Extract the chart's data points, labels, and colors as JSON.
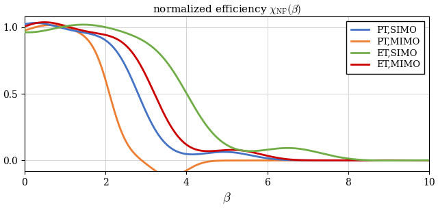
{
  "title": "normalized efficiency $\\chi_{\\mathrm{NF}}(\\beta)$",
  "xlabel": "$\\beta$",
  "xlim": [
    0,
    10
  ],
  "ylim": [
    -0.08,
    1.08
  ],
  "xticks": [
    0,
    2,
    4,
    6,
    8,
    10
  ],
  "yticks": [
    0,
    0.5,
    1
  ],
  "grid": true,
  "legend": [
    "PT,SIMO",
    "PT,MIMO",
    "ET,SIMO",
    "ET,MIMO"
  ],
  "colors": [
    "#4472C4",
    "#ED7D31",
    "#70AD47",
    "#CC0000"
  ],
  "linewidth": 2.0,
  "figsize": [
    6.4,
    3.04
  ],
  "dpi": 100
}
